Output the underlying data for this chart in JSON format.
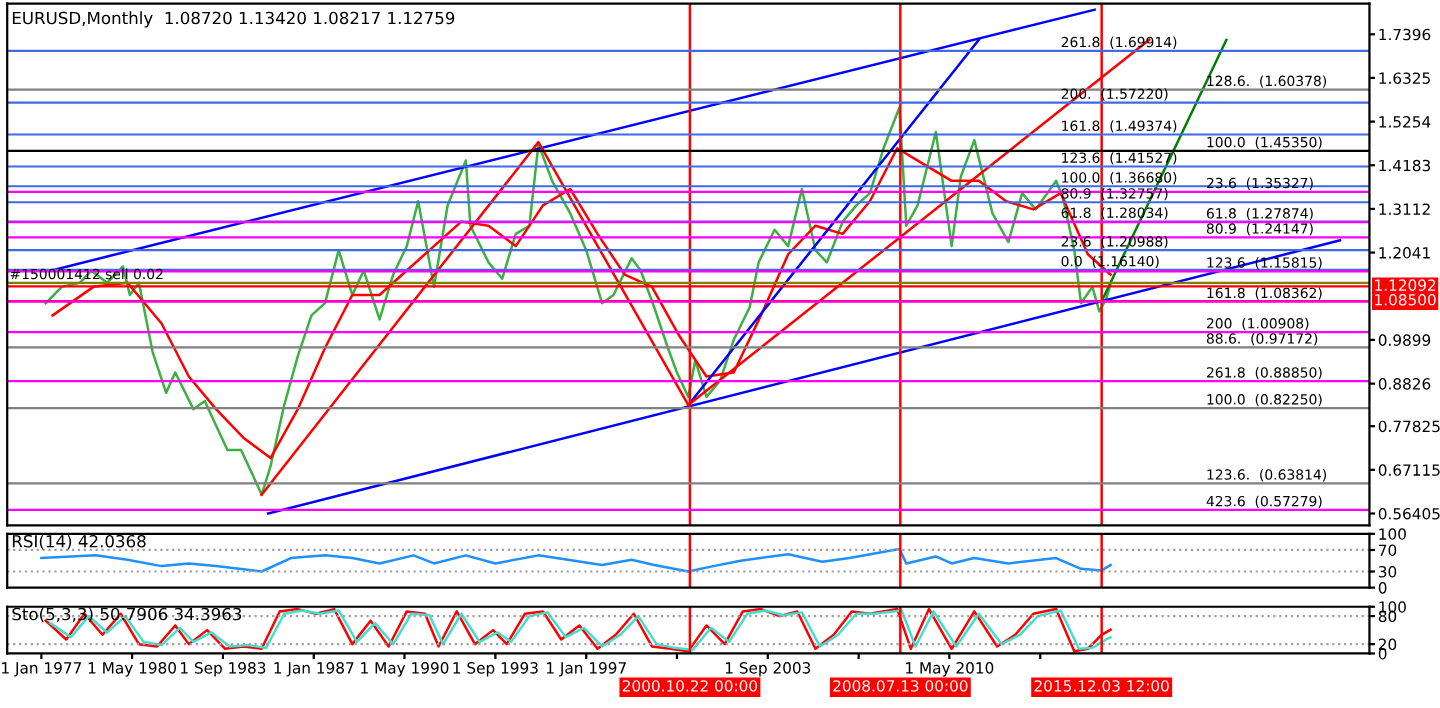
{
  "chart_data": [
    {
      "type": "line",
      "title": "EURUSD,Monthly  1.08720 1.13420 1.08217 1.12759",
      "xlim": [
        "1975-10",
        "2025-10"
      ],
      "ylim": [
        0.535,
        1.815
      ],
      "yticks": [
        1.7396,
        1.6325,
        1.5254,
        1.4183,
        1.3112,
        1.2041,
        0.9899,
        0.8826,
        0.77825,
        0.67115,
        0.56405
      ],
      "tick_labels": "y",
      "series": [
        {
          "color": "#3cb043",
          "x": [
            "1977-03",
            "1977-10",
            "1978-06",
            "1978-11",
            "1979-06",
            "1980-01",
            "1980-04",
            "1980-08",
            "1981-02",
            "1981-08",
            "1981-12",
            "1982-08",
            "1983-01",
            "1983-06",
            "1983-11",
            "1984-05",
            "1984-10",
            "1985-02",
            "1985-06",
            "1985-12",
            "1986-06",
            "1986-12",
            "1987-06",
            "1987-12",
            "1988-06",
            "1988-11",
            "1989-06",
            "1989-12",
            "1990-06",
            "1990-11",
            "1991-06",
            "1991-12",
            "1992-08",
            "1992-10",
            "1993-06",
            "1993-12",
            "1994-06",
            "1994-12",
            "1995-04",
            "1995-10",
            "1996-06",
            "1997-01",
            "1997-08",
            "1998-01",
            "1998-09",
            "1999-01",
            "1999-07",
            "2000-01",
            "2000-05",
            "2000-10",
            "2001-01",
            "2001-06",
            "2001-12",
            "2002-06",
            "2003-01",
            "2003-05",
            "2003-12",
            "2004-06",
            "2004-12",
            "2005-06",
            "2005-11",
            "2006-06",
            "2006-12",
            "2007-06",
            "2007-12",
            "2008-07",
            "2008-10",
            "2009-03",
            "2009-11",
            "2010-06",
            "2010-10",
            "2011-04",
            "2011-12",
            "2012-07",
            "2013-01",
            "2013-07",
            "2014-04",
            "2014-07",
            "2014-12",
            "2015-03",
            "2015-08",
            "2015-11",
            "2016-02",
            "2016-04"
          ],
          "values": [
            1.08,
            1.12,
            1.13,
            1.16,
            1.13,
            1.17,
            1.1,
            1.13,
            0.96,
            0.86,
            0.91,
            0.82,
            0.84,
            0.78,
            0.72,
            0.72,
            0.66,
            0.61,
            0.68,
            0.83,
            0.95,
            1.05,
            1.08,
            1.21,
            1.1,
            1.16,
            1.04,
            1.15,
            1.22,
            1.33,
            1.12,
            1.32,
            1.43,
            1.27,
            1.18,
            1.14,
            1.25,
            1.27,
            1.47,
            1.38,
            1.3,
            1.21,
            1.08,
            1.1,
            1.19,
            1.16,
            1.07,
            0.97,
            0.91,
            0.85,
            0.94,
            0.85,
            0.89,
            0.99,
            1.07,
            1.18,
            1.26,
            1.22,
            1.36,
            1.21,
            1.18,
            1.28,
            1.32,
            1.35,
            1.46,
            1.56,
            1.27,
            1.32,
            1.5,
            1.22,
            1.39,
            1.48,
            1.3,
            1.23,
            1.35,
            1.31,
            1.38,
            1.34,
            1.21,
            1.08,
            1.12,
            1.06,
            1.09,
            1.12759
          ]
        },
        {
          "color": "#ff0000",
          "x": [
            "1977-06",
            "1978-12",
            "1980-03",
            "1981-06",
            "1982-06",
            "1983-06",
            "1984-06",
            "1985-06",
            "1986-06",
            "1987-06",
            "1988-06",
            "1989-06",
            "1990-06",
            "1991-06",
            "1992-06",
            "1993-06",
            "1994-06",
            "1995-06",
            "1996-06",
            "1997-06",
            "1998-06",
            "1999-06",
            "2000-06",
            "2001-06",
            "2002-06",
            "2003-06",
            "2004-06",
            "2005-06",
            "2006-06",
            "2007-06",
            "2008-06",
            "2009-06",
            "2010-06",
            "2011-06",
            "2012-06",
            "2013-06",
            "2014-06",
            "2015-06",
            "2016-04"
          ],
          "values": [
            1.05,
            1.12,
            1.13,
            1.03,
            0.9,
            0.82,
            0.75,
            0.7,
            0.82,
            0.97,
            1.1,
            1.1,
            1.16,
            1.22,
            1.28,
            1.27,
            1.22,
            1.32,
            1.36,
            1.25,
            1.15,
            1.12,
            1.0,
            0.9,
            0.91,
            1.05,
            1.2,
            1.27,
            1.25,
            1.33,
            1.46,
            1.42,
            1.38,
            1.38,
            1.33,
            1.31,
            1.35,
            1.2,
            1.15
          ]
        },
        {
          "color": "#0000ff",
          "x": [
            "1977-06",
            "2015-09"
          ],
          "values": [
            1.161,
            1.8
          ]
        },
        {
          "color": "#0000ff",
          "x": [
            "1985-05",
            "2024-09"
          ],
          "values": [
            0.564,
            1.234
          ]
        },
        {
          "color": "#0000ff",
          "x": [
            "2000-10",
            "2011-06"
          ],
          "values": [
            0.83,
            1.726
          ]
        },
        {
          "color": "#ff0000",
          "x": [
            "1985-02",
            "1995-04",
            "2000-10"
          ],
          "values": [
            0.61,
            1.475,
            0.83
          ]
        },
        {
          "color": "#ff0000",
          "x": [
            "2000-10",
            "2017-09"
          ],
          "values": [
            0.83,
            1.726
          ]
        },
        {
          "color": "#008000",
          "x": [
            "2015-12",
            "2020-07"
          ],
          "values": [
            1.084,
            1.726
          ]
        }
      ],
      "ref_lines": [
        {
          "axis": "x",
          "value": "2000-10-22",
          "color": "#ff0000"
        },
        {
          "axis": "x",
          "value": "2008-07-13",
          "color": "#ff0000"
        },
        {
          "axis": "x",
          "value": "2015-12-03",
          "color": "#ff0000"
        },
        {
          "axis": "y",
          "value": 1.13,
          "color": "#808000"
        },
        {
          "axis": "y",
          "value": 1.12092,
          "color": "#ff0000",
          "label": "1.12092"
        },
        {
          "axis": "y",
          "value": 1.085,
          "color": "#ff0000",
          "label": "1.08500"
        },
        {
          "axis": "y",
          "value": 1.69914,
          "color": "#4169e1"
        },
        {
          "axis": "y",
          "value": 1.5722,
          "color": "#4169e1"
        },
        {
          "axis": "y",
          "value": 1.49374,
          "color": "#4169e1"
        },
        {
          "axis": "y",
          "value": 1.41527,
          "color": "#4169e1"
        },
        {
          "axis": "y",
          "value": 1.3668,
          "color": "#4169e1"
        },
        {
          "axis": "y",
          "value": 1.32757,
          "color": "#4169e1"
        },
        {
          "axis": "y",
          "value": 1.28034,
          "color": "#4169e1"
        },
        {
          "axis": "y",
          "value": 1.20988,
          "color": "#4169e1"
        },
        {
          "axis": "y",
          "value": 1.1614,
          "color": "#4169e1"
        },
        {
          "axis": "y",
          "value": 1.60378,
          "color": "#808080"
        },
        {
          "axis": "y",
          "value": 1.4535,
          "color": "#000000"
        },
        {
          "axis": "y",
          "value": 0.97172,
          "color": "#808080"
        },
        {
          "axis": "y",
          "value": 0.8225,
          "color": "#808080"
        },
        {
          "axis": "y",
          "value": 0.63814,
          "color": "#808080"
        },
        {
          "axis": "y",
          "value": 1.35327,
          "color": "#ff00ff"
        },
        {
          "axis": "y",
          "value": 1.27874,
          "color": "#ff00ff"
        },
        {
          "axis": "y",
          "value": 1.24147,
          "color": "#ff00ff"
        },
        {
          "axis": "y",
          "value": 1.15815,
          "color": "#ff00ff"
        },
        {
          "axis": "y",
          "value": 1.08362,
          "color": "#ff00ff"
        },
        {
          "axis": "y",
          "value": 1.00908,
          "color": "#ff00ff"
        },
        {
          "axis": "y",
          "value": 0.8885,
          "color": "#ff00ff"
        },
        {
          "axis": "y",
          "value": 0.57279,
          "color": "#ff00ff"
        }
      ],
      "annotations": [
        {
          "text": "#150001412 sell 0.02",
          "x": "1975-11",
          "y": 1.13
        },
        {
          "text": "261.8  (1.69914)",
          "x": "2014-06",
          "y": 1.69914
        },
        {
          "text": "200.  (1.57220)",
          "x": "2014-06",
          "y": 1.5722
        },
        {
          "text": "161.8  (1.49374)",
          "x": "2014-06",
          "y": 1.49374
        },
        {
          "text": "123.6  (1.41527)",
          "x": "2014-06",
          "y": 1.41527
        },
        {
          "text": "100.0  (1.36680)",
          "x": "2014-06",
          "y": 1.3668
        },
        {
          "text": "80.9  (1.32757)",
          "x": "2014-06",
          "y": 1.32757
        },
        {
          "text": "61.8  (1.28034)",
          "x": "2014-06",
          "y": 1.28034
        },
        {
          "text": "23.6  (1.20988)",
          "x": "2014-06",
          "y": 1.20988
        },
        {
          "text": "0.0  (1.16140)",
          "x": "2014-06",
          "y": 1.1614
        },
        {
          "text": "128.6.  (1.60378)",
          "x": "2019-10",
          "y": 1.60378
        },
        {
          "text": "100.0  (1.45350)",
          "x": "2019-10",
          "y": 1.4535
        },
        {
          "text": "23.6  (1.35327)",
          "x": "2019-10",
          "y": 1.35327
        },
        {
          "text": "61.8  (1.27874)",
          "x": "2019-10",
          "y": 1.27874
        },
        {
          "text": "80.9  (1.24147)",
          "x": "2019-10",
          "y": 1.24147
        },
        {
          "text": "123.6  (1.15815)",
          "x": "2019-10",
          "y": 1.15815
        },
        {
          "text": "161.8  (1.08362)",
          "x": "2019-10",
          "y": 1.08362
        },
        {
          "text": "200  (1.00908)",
          "x": "2019-10",
          "y": 1.00908
        },
        {
          "text": "88.6.  (0.97172)",
          "x": "2019-10",
          "y": 0.97172
        },
        {
          "text": "261.8  (0.88850)",
          "x": "2019-10",
          "y": 0.8885
        },
        {
          "text": "100.0  (0.82250)",
          "x": "2019-10",
          "y": 0.8225
        },
        {
          "text": "123.6.  (0.63814)",
          "x": "2019-10",
          "y": 0.63814
        },
        {
          "text": "423.6  (0.57279)",
          "x": "2019-10",
          "y": 0.57279
        }
      ]
    },
    {
      "type": "line",
      "title": "RSI(14) 42.0368",
      "xlim": [
        "1975-10",
        "2025-10"
      ],
      "ylim": [
        0,
        100
      ],
      "yticks": [
        0,
        30,
        70,
        100
      ],
      "tick_labels": "y",
      "series": [
        {
          "color": "#1e90ff",
          "x": [
            "1977-01",
            "1979-01",
            "1980-03",
            "1981-06",
            "1982-06",
            "1983-06",
            "1985-02",
            "1986-03",
            "1987-06",
            "1988-06",
            "1989-06",
            "1990-09",
            "1991-06",
            "1992-08",
            "1993-09",
            "1995-04",
            "1997-08",
            "1998-09",
            "1999-07",
            "2000-10",
            "2001-09",
            "2002-09",
            "2004-06",
            "2005-09",
            "2006-09",
            "2008-07",
            "2008-10",
            "2009-11",
            "2010-06",
            "2011-04",
            "2012-07",
            "2014-04",
            "2015-03",
            "2015-12",
            "2016-04"
          ],
          "values": [
            55,
            60,
            52,
            40,
            45,
            40,
            30,
            55,
            60,
            55,
            45,
            60,
            45,
            60,
            45,
            60,
            42,
            52,
            42,
            30,
            40,
            50,
            62,
            48,
            55,
            72,
            45,
            58,
            45,
            55,
            45,
            55,
            35,
            32,
            42.0368
          ]
        }
      ],
      "ref_lines": [
        {
          "axis": "y",
          "value": 70,
          "color": "#a0a0a0",
          "line_style": "dotted"
        },
        {
          "axis": "y",
          "value": 30,
          "color": "#a0a0a0",
          "line_style": "dotted"
        },
        {
          "axis": "x",
          "value": "2000-10-22",
          "color": "#ff0000"
        },
        {
          "axis": "x",
          "value": "2008-07-13",
          "color": "#ff0000"
        },
        {
          "axis": "x",
          "value": "2015-12-03",
          "color": "#ff0000"
        }
      ]
    },
    {
      "type": "line",
      "title": "Sto(5,3,3) 50.7906 34.3963",
      "xlim": [
        "1975-10",
        "2025-10"
      ],
      "ylim": [
        0,
        100
      ],
      "yticks": [
        0,
        20,
        80,
        100
      ],
      "xticks": [
        {
          "value": "1977-01",
          "label": "1 Jan 1977"
        },
        {
          "value": "1980-05",
          "label": "1 May 1980"
        },
        {
          "value": "1983-09",
          "label": "1 Sep 1983"
        },
        {
          "value": "1987-01",
          "label": "1 Jan 1987"
        },
        {
          "value": "1990-05",
          "label": "1 May 1990"
        },
        {
          "value": "1993-09",
          "label": "1 Sep 1993"
        },
        {
          "value": "1997-01",
          "label": "1 Jan 1997"
        },
        {
          "value": "2000-05",
          "label": null
        },
        {
          "value": "2003-09",
          "label": "1 Sep 2003"
        },
        {
          "value": "2007-01",
          "label": null
        },
        {
          "value": "2010-05",
          "label": "1 May 2010"
        },
        {
          "value": "2013-09",
          "label": null
        }
      ],
      "series": [
        {
          "color": "#ff0000",
          "x": [
            "1977-03",
            "1977-12",
            "1978-08",
            "1979-04",
            "1979-12",
            "1980-08",
            "1981-04",
            "1981-12",
            "1982-06",
            "1983-02",
            "1983-10",
            "1984-06",
            "1985-02",
            "1985-10",
            "1986-06",
            "1987-02",
            "1987-10",
            "1988-06",
            "1989-02",
            "1989-10",
            "1990-06",
            "1991-02",
            "1991-08",
            "1992-04",
            "1992-12",
            "1993-08",
            "1994-02",
            "1994-10",
            "1995-06",
            "1996-02",
            "1996-10",
            "1997-06",
            "1998-02",
            "1998-10",
            "1999-06",
            "2000-02",
            "2000-10",
            "2001-06",
            "2002-02",
            "2002-10",
            "2003-06",
            "2004-02",
            "2004-10",
            "2005-06",
            "2006-02",
            "2006-10",
            "2007-06",
            "2008-06",
            "2008-12",
            "2009-08",
            "2010-06",
            "2011-04",
            "2012-02",
            "2012-10",
            "2013-06",
            "2014-04",
            "2014-12",
            "2015-06",
            "2015-12",
            "2016-04"
          ],
          "values": [
            70,
            30,
            85,
            40,
            85,
            20,
            15,
            60,
            20,
            50,
            10,
            15,
            10,
            90,
            95,
            85,
            95,
            20,
            70,
            15,
            90,
            85,
            15,
            90,
            20,
            50,
            20,
            85,
            90,
            30,
            60,
            10,
            40,
            85,
            15,
            10,
            5,
            60,
            20,
            90,
            95,
            80,
            90,
            10,
            40,
            90,
            85,
            95,
            10,
            95,
            10,
            90,
            15,
            40,
            85,
            95,
            5,
            10,
            40,
            50.7906
          ]
        },
        {
          "color": "#40e0d0",
          "x": [
            "1977-05",
            "1978-02",
            "1978-10",
            "1979-06",
            "1980-02",
            "1980-10",
            "1981-06",
            "1982-02",
            "1982-08",
            "1983-04",
            "1983-12",
            "1984-08",
            "1985-04",
            "1985-12",
            "1986-08",
            "1987-04",
            "1987-12",
            "1988-08",
            "1989-04",
            "1989-12",
            "1990-08",
            "1991-04",
            "1991-10",
            "1992-06",
            "1993-02",
            "1993-10",
            "1994-04",
            "1994-12",
            "1995-08",
            "1996-04",
            "1996-12",
            "1997-08",
            "1998-04",
            "1998-12",
            "1999-08",
            "2000-04",
            "2000-12",
            "2001-08",
            "2002-04",
            "2002-12",
            "2003-08",
            "2004-04",
            "2004-12",
            "2005-08",
            "2006-04",
            "2006-12",
            "2007-08",
            "2008-08",
            "2009-02",
            "2009-10",
            "2010-08",
            "2011-06",
            "2012-04",
            "2012-12",
            "2013-08",
            "2014-06",
            "2015-02",
            "2015-08",
            "2016-02",
            "2016-04"
          ],
          "values": [
            65,
            35,
            80,
            45,
            80,
            25,
            18,
            55,
            25,
            45,
            15,
            18,
            12,
            85,
            92,
            85,
            92,
            25,
            65,
            20,
            85,
            82,
            20,
            85,
            25,
            45,
            25,
            80,
            88,
            35,
            55,
            15,
            40,
            80,
            20,
            12,
            8,
            55,
            25,
            85,
            92,
            82,
            88,
            15,
            40,
            85,
            85,
            92,
            15,
            90,
            15,
            85,
            20,
            40,
            80,
            92,
            10,
            12,
            30,
            34.3963
          ]
        }
      ],
      "ref_lines": [
        {
          "axis": "y",
          "value": 80,
          "color": "#a0a0a0",
          "line_style": "dotted"
        },
        {
          "axis": "y",
          "value": 20,
          "color": "#a0a0a0",
          "line_style": "dotted"
        },
        {
          "axis": "x",
          "value": "2000-10-22",
          "color": "#ff0000",
          "label": "2000.10.22 00:00"
        },
        {
          "axis": "x",
          "value": "2008-07-13",
          "color": "#ff0000",
          "label": "2008.07.13 00:00"
        },
        {
          "axis": "x",
          "value": "2015-12-03",
          "color": "#ff0000",
          "label": "2015.12.03 12:00"
        }
      ]
    }
  ]
}
